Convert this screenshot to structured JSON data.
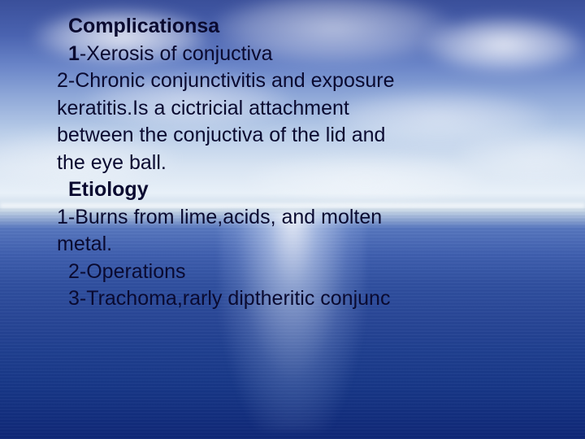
{
  "slide": {
    "colors": {
      "text": "#0a0a30",
      "sky_top": "#3a4f9a",
      "sky_mid": "#d8e4f2",
      "sea_top": "#5878c0",
      "sea_bottom": "#102878",
      "cloud": "#ffffff",
      "reflection": "#ffffff"
    },
    "font": {
      "family": "Verdana",
      "size_pt": 19,
      "heading_weight": 700,
      "body_weight": 400
    },
    "lines": [
      {
        "text": "Complicationsa",
        "bold": true,
        "indent": 1
      },
      {
        "text": "1-Xerosis of conjuctiva",
        "bold_prefix": "1",
        "indent": 1
      },
      {
        "text": "2-Chronic conjunctivitis  and exposure",
        "indent": 0
      },
      {
        "text": "keratitis.Is a cictricial attachment",
        "indent": 0
      },
      {
        "text": "between the conjuctiva of the lid and",
        "indent": 0
      },
      {
        "text": "the eye ball.",
        "indent": 0
      },
      {
        "text": "Etiology",
        "bold": true,
        "indent": 1
      },
      {
        "text": "1-Burns from lime,acids, and molten",
        "indent": 0
      },
      {
        "text": "metal.",
        "indent": 0
      },
      {
        "text": "2-Operations",
        "indent": 1
      },
      {
        "text": "3-Trachoma,rarly diptheritic conjunc",
        "indent": 1
      }
    ]
  }
}
